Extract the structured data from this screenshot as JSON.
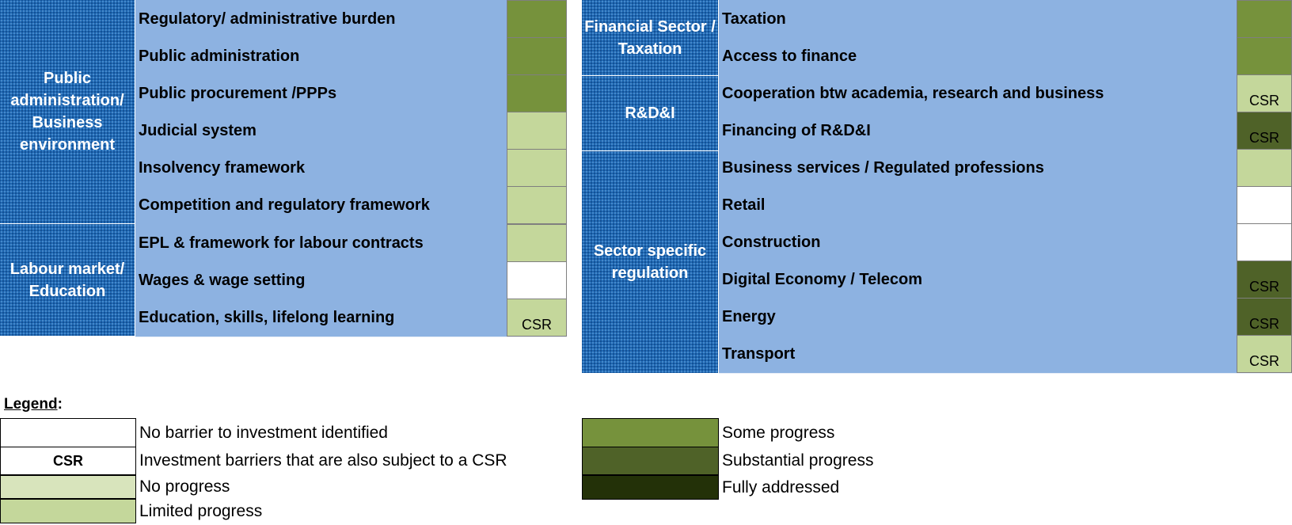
{
  "left_table": {
    "groups": [
      {
        "label": "Public administration/ Business environment",
        "items": [
          {
            "label": "Regulatory/ administrative burden",
            "status": "Some progress",
            "mark": ""
          },
          {
            "label": "Public administration",
            "status": "Some progress",
            "mark": ""
          },
          {
            "label": "Public procurement /PPPs",
            "status": "Some progress",
            "mark": ""
          },
          {
            "label": "Judicial system",
            "status": "Limited progress",
            "mark": ""
          },
          {
            "label": "Insolvency framework",
            "status": "Limited progress",
            "mark": ""
          },
          {
            "label": "Competition and regulatory framework",
            "status": "Limited progress",
            "mark": ""
          }
        ]
      },
      {
        "label": "Labour market/ Education",
        "items": [
          {
            "label": "EPL & framework for labour contracts",
            "status": "Limited progress",
            "mark": ""
          },
          {
            "label": "Wages & wage setting",
            "status": "No barrier to investment identified",
            "mark": ""
          },
          {
            "label": "Education, skills, lifelong learning",
            "status": "Limited progress",
            "mark": "CSR"
          }
        ]
      }
    ]
  },
  "right_table": {
    "groups": [
      {
        "label": "Financial Sector / Taxation",
        "items": [
          {
            "label": "Taxation",
            "status": "Some progress",
            "mark": ""
          },
          {
            "label": "Access to finance",
            "status": "Some progress",
            "mark": ""
          }
        ]
      },
      {
        "label": "R&D&I",
        "items": [
          {
            "label": "Cooperation btw academia, research and business",
            "status": "Limited progress",
            "mark": "CSR"
          },
          {
            "label": "Financing of R&D&I",
            "status": "Substantial progress",
            "mark": "CSR"
          }
        ]
      },
      {
        "label": "Sector specific regulation",
        "items": [
          {
            "label": "Business services / Regulated professions",
            "status": "Limited progress",
            "mark": ""
          },
          {
            "label": "Retail",
            "status": "No barrier to investment identified",
            "mark": ""
          },
          {
            "label": "Construction",
            "status": "No barrier to investment identified",
            "mark": ""
          },
          {
            "label": "Digital Economy / Telecom",
            "status": "Substantial progress",
            "mark": "CSR"
          },
          {
            "label": "Energy",
            "status": "Substantial progress",
            "mark": "CSR"
          },
          {
            "label": "Transport",
            "status": "Limited progress",
            "mark": "CSR"
          }
        ]
      }
    ]
  },
  "legend": {
    "title": "Legend",
    "title_suffix": ":",
    "entries": [
      {
        "label": "No barrier to investment identified",
        "color": "#ffffff",
        "swatch_text": ""
      },
      {
        "label": "Investment barriers that are also subject to a CSR",
        "color": "#ffffff",
        "swatch_text": "CSR"
      },
      {
        "label": "No progress",
        "color": "#d8e4bc",
        "swatch_text": ""
      },
      {
        "label": "Limited progress",
        "color": "#c4d79b",
        "swatch_text": ""
      },
      {
        "label": "Some progress",
        "color": "#76923c",
        "swatch_text": ""
      },
      {
        "label": "Substantial progress",
        "color": "#4f6228",
        "swatch_text": ""
      },
      {
        "label": "Fully addressed",
        "color": "#233108",
        "swatch_text": ""
      }
    ]
  },
  "colors": {
    "category_bg": "#1f69b4",
    "item_bg": "#8db2e1"
  }
}
